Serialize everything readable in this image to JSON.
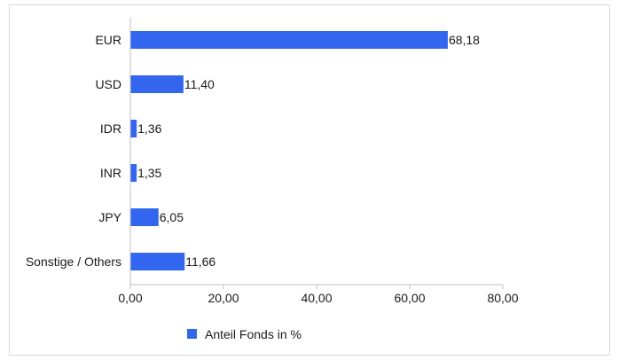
{
  "chart_data": {
    "type": "bar",
    "orientation": "horizontal",
    "categories": [
      "EUR",
      "USD",
      "IDR",
      "INR",
      "JPY",
      "Sonstige / Others"
    ],
    "series": [
      {
        "name": "Anteil Fonds in %",
        "values": [
          68.18,
          11.4,
          1.36,
          1.35,
          6.05,
          11.66
        ],
        "value_labels": [
          "68,18",
          "11,40",
          "1,36",
          "1,35",
          "6,05",
          "11,66"
        ]
      }
    ],
    "xlim": [
      0,
      80
    ],
    "x_ticks": [
      0,
      20,
      40,
      60,
      80
    ],
    "x_tick_labels": [
      "0,00",
      "20,00",
      "40,00",
      "60,00",
      "80,00"
    ],
    "title": "",
    "xlabel": "",
    "ylabel": "",
    "grid": false,
    "legend_position": "bottom",
    "colors": {
      "bar": "#3366ee",
      "axis": "#bfbfbf"
    }
  }
}
